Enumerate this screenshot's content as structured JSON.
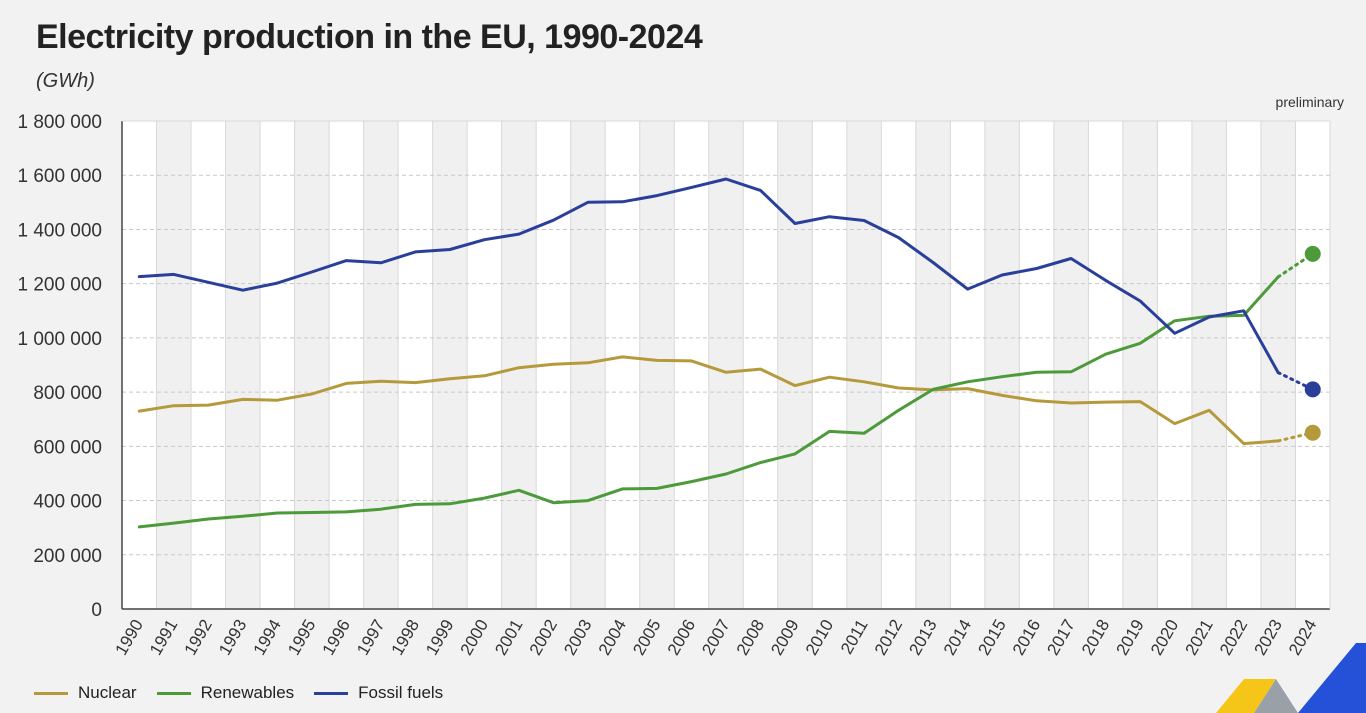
{
  "chart_data": {
    "type": "line",
    "title": "Electricity production in the EU, 1990-2024",
    "unit_label": "(GWh)",
    "annotation": "preliminary",
    "xlabel": "",
    "ylabel": "",
    "ylim": [
      0,
      1800000
    ],
    "yticks": [
      0,
      200000,
      400000,
      600000,
      800000,
      1000000,
      1200000,
      1400000,
      1600000,
      1800000
    ],
    "ytick_labels": [
      "0",
      "200 000",
      "400 000",
      "600 000",
      "800 000",
      "1 000 000",
      "1 200 000",
      "1 400 000",
      "1 600 000",
      "1 800 000"
    ],
    "categories": [
      "1990",
      "1991",
      "1992",
      "1993",
      "1994",
      "1995",
      "1996",
      "1997",
      "1998",
      "1999",
      "2000",
      "2001",
      "2002",
      "2003",
      "2004",
      "2005",
      "2006",
      "2007",
      "2008",
      "2009",
      "2010",
      "2011",
      "2012",
      "2013",
      "2014",
      "2015",
      "2016",
      "2017",
      "2018",
      "2019",
      "2020",
      "2021",
      "2022",
      "2023",
      "2024"
    ],
    "preliminary_from_index": 33,
    "series": [
      {
        "name": "Nuclear",
        "color": "#b59a3c",
        "values": [
          730000,
          750000,
          752000,
          773000,
          770000,
          793000,
          832000,
          840000,
          835000,
          849000,
          860000,
          890000,
          903000,
          908000,
          930000,
          917000,
          915000,
          873000,
          885000,
          824000,
          855000,
          838000,
          815000,
          808000,
          813000,
          788000,
          768000,
          760000,
          763000,
          765000,
          684000,
          733000,
          610000,
          620000,
          650000
        ]
      },
      {
        "name": "Renewables",
        "color": "#4c9a3a",
        "values": [
          303000,
          317000,
          332000,
          342000,
          354000,
          356000,
          358000,
          368000,
          386000,
          388000,
          409000,
          438000,
          392000,
          400000,
          443000,
          445000,
          470000,
          498000,
          540000,
          572000,
          655000,
          648000,
          733000,
          810000,
          838000,
          857000,
          873000,
          875000,
          940000,
          980000,
          1063000,
          1080000,
          1083000,
          1225000,
          1310000
        ]
      },
      {
        "name": "Fossil fuels",
        "color": "#2a3f9a",
        "values": [
          1226000,
          1234000,
          1205000,
          1176000,
          1202000,
          1243000,
          1285000,
          1277000,
          1317000,
          1326000,
          1362000,
          1383000,
          1434000,
          1500000,
          1502000,
          1525000,
          1555000,
          1586000,
          1544000,
          1422000,
          1447000,
          1433000,
          1370000,
          1278000,
          1180000,
          1232000,
          1256000,
          1293000,
          1212000,
          1136000,
          1017000,
          1077000,
          1100000,
          872000,
          810000
        ]
      }
    ]
  },
  "legend": {
    "nuclear": "Nuclear",
    "renewables": "Renewables",
    "fossil": "Fossil fuels"
  }
}
